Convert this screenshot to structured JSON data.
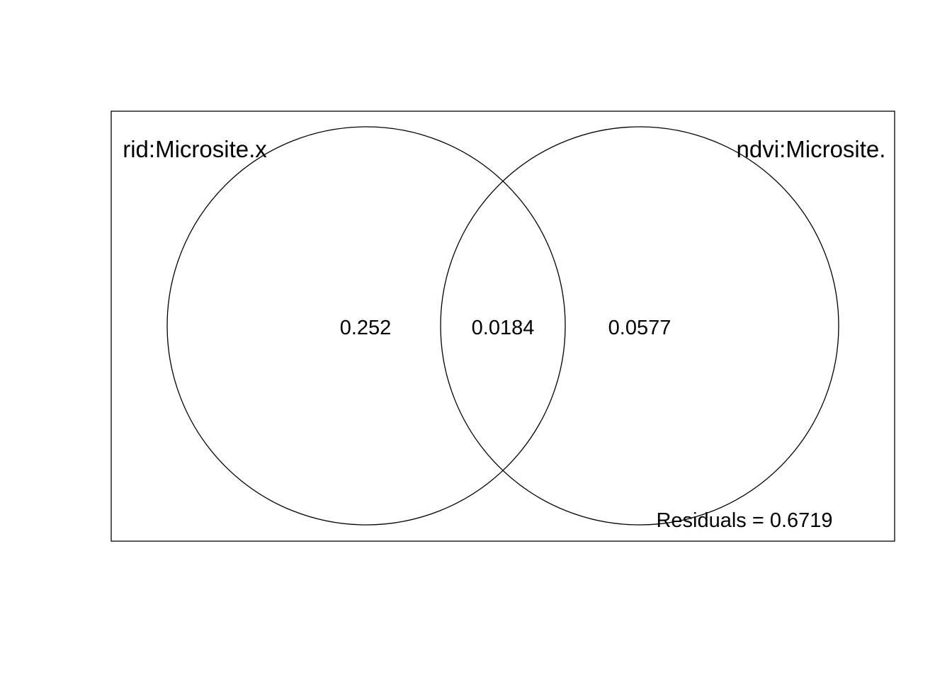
{
  "diagram": {
    "type": "venn",
    "sets": [
      {
        "name": "rid:Microsite.x"
      },
      {
        "name": "ndvi:Microsite."
      }
    ],
    "fractions": {
      "only_a": "0.252",
      "shared": "0.0184",
      "only_b": "0.0577"
    },
    "residuals_text": "Residuals = 0.6719"
  }
}
